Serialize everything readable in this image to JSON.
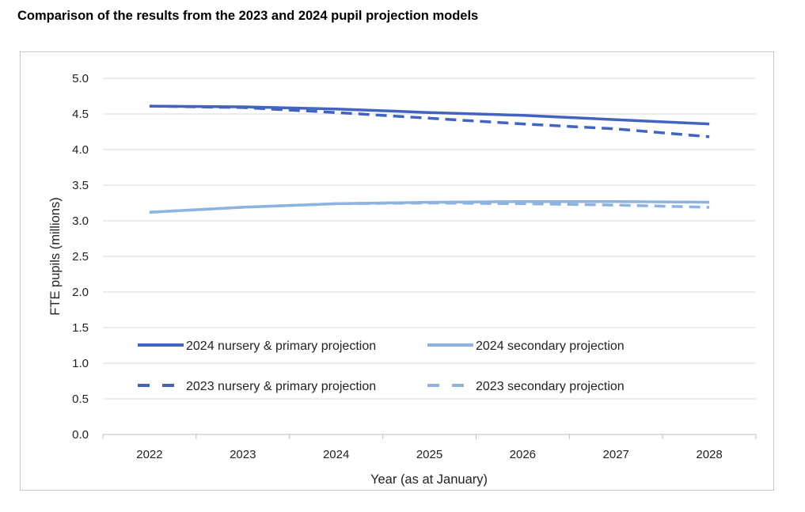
{
  "title": "Comparison of the results from the 2023 and 2024 pupil projection models",
  "chart_data": {
    "type": "line",
    "title": "Comparison of the results from the 2023 and 2024 pupil projection models",
    "xlabel": "Year (as at January)",
    "ylabel": "FTE pupils (millions)",
    "categories": [
      "2022",
      "2023",
      "2024",
      "2025",
      "2026",
      "2027",
      "2028"
    ],
    "ylim": [
      0,
      5
    ],
    "yticks": [
      "0.0",
      "0.5",
      "1.0",
      "1.5",
      "2.0",
      "2.5",
      "3.0",
      "3.5",
      "4.0",
      "4.5",
      "5.0"
    ],
    "grid": "horizontal",
    "legend_position": "inside-bottom",
    "series": [
      {
        "name": "2024 nursery & primary projection",
        "color": "#4363c0",
        "style": "solid",
        "values": [
          4.61,
          4.6,
          4.57,
          4.52,
          4.48,
          4.42,
          4.36
        ]
      },
      {
        "name": "2024 secondary projection",
        "color": "#8db3e2",
        "style": "solid",
        "values": [
          3.12,
          3.19,
          3.24,
          3.26,
          3.27,
          3.27,
          3.26
        ]
      },
      {
        "name": "2023 nursery & primary projection",
        "color": "#4363c0",
        "style": "dashed",
        "values": [
          4.61,
          4.59,
          4.52,
          4.44,
          4.36,
          4.29,
          4.18
        ]
      },
      {
        "name": "2023 secondary projection",
        "color": "#8db3e2",
        "style": "dashed",
        "values": [
          3.12,
          3.19,
          3.24,
          3.25,
          3.24,
          3.22,
          3.19
        ]
      }
    ]
  }
}
